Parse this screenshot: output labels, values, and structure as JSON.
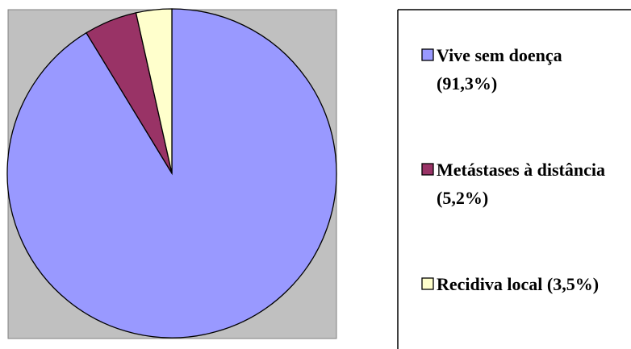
{
  "chart_data": {
    "type": "pie",
    "categories": [
      "Vive sem doença",
      "Metástases à distância",
      "Recidiva local"
    ],
    "values": [
      91.3,
      5.2,
      3.5
    ],
    "value_labels": [
      "(91,3%)",
      "(5,2%)",
      "(3,5%)"
    ],
    "colors": [
      "#9999ff",
      "#993366",
      "#ffffcc"
    ],
    "legend": "right"
  }
}
